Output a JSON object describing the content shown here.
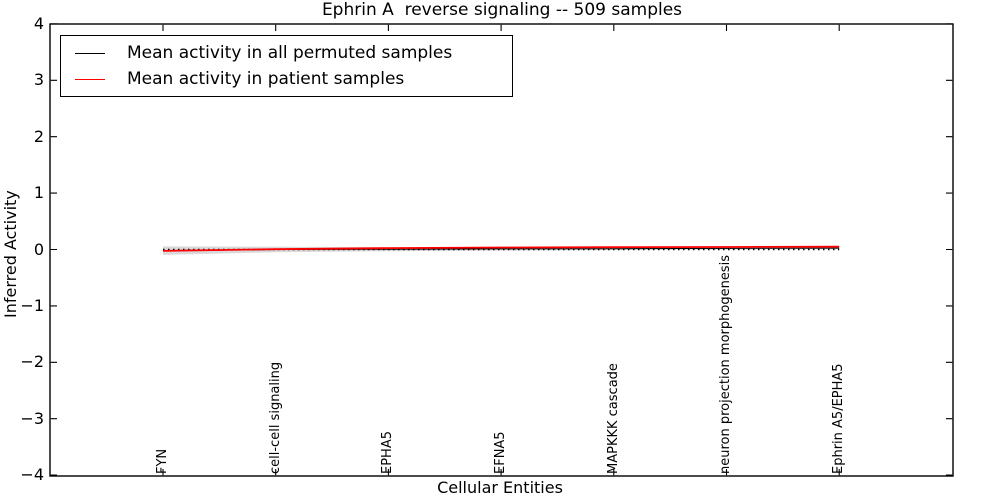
{
  "chart_data": {
    "type": "line",
    "title": "Ephrin A  reverse signaling -- 509 samples",
    "xlabel": "Cellular Entities",
    "ylabel": "Inferred Activity",
    "ylim": [
      -4,
      4
    ],
    "yticks": [
      4,
      3,
      2,
      1,
      0,
      -1,
      -2,
      -3,
      -4
    ],
    "ytick_labels": [
      "4",
      "3",
      "2",
      "1",
      "0",
      "−1",
      "−2",
      "−3",
      "−4"
    ],
    "categories": [
      "FYN",
      "cell-cell signaling",
      "EPHA5",
      "EFNA5",
      "MAPKKK cascade",
      "neuron projection morphogenesis",
      "Ephrin A5/EPHA5"
    ],
    "series": [
      {
        "name": "Mean activity in all permuted samples",
        "color": "#000000",
        "values": [
          -0.02,
          0.0,
          0.005,
          0.01,
          0.015,
          0.02,
          0.025
        ],
        "std": [
          0.075,
          0.05,
          0.035,
          0.03,
          0.025,
          0.022,
          0.02
        ]
      },
      {
        "name": "Mean activity in patient samples",
        "color": "#ff0000",
        "values": [
          -0.025,
          0.005,
          0.025,
          0.035,
          0.04,
          0.045,
          0.05
        ]
      }
    ],
    "zero_line": {
      "value": 0,
      "style": "dotted",
      "color": "#000000"
    },
    "band_color": "#cfcfcf",
    "legend_position": "upper left",
    "grid": false
  }
}
